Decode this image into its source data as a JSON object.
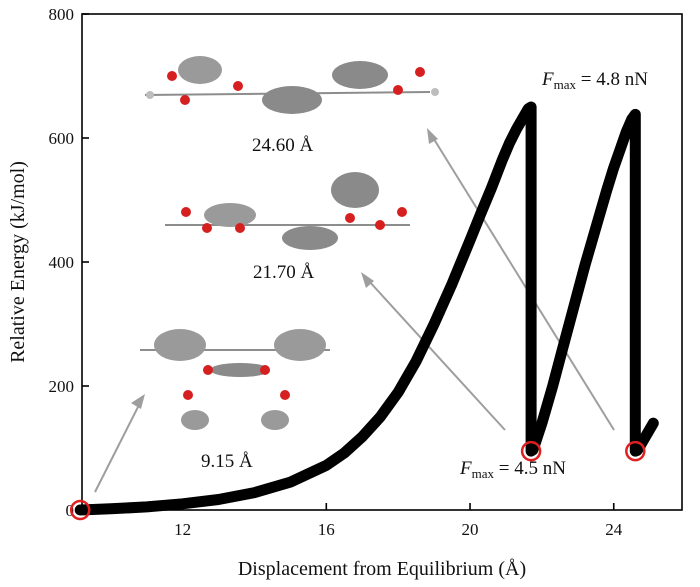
{
  "chart_data": {
    "type": "line",
    "xlabel": "Displacement from Equilibrium (Å)",
    "ylabel": "Relative Energy (kJ/mol)",
    "xlim": [
      9.2,
      25.9
    ],
    "ylim": [
      0,
      800
    ],
    "xticks": [
      12,
      16,
      20,
      24
    ],
    "yticks": [
      0,
      200,
      400,
      600,
      800
    ],
    "x_tick_labels": [
      "12",
      "16",
      "20",
      "24"
    ],
    "y_tick_labels": [
      "0",
      "200",
      "400",
      "600",
      "800"
    ],
    "series": [
      {
        "name": "Relative Energy",
        "color": "#000000",
        "x": [
          9.15,
          10.0,
          11.0,
          12.0,
          13.0,
          14.0,
          15.0,
          16.0,
          16.5,
          17.0,
          17.5,
          18.0,
          18.5,
          19.0,
          19.5,
          20.0,
          20.3,
          20.6,
          20.9,
          21.1,
          21.3,
          21.5,
          21.62,
          21.7,
          21.7,
          21.75,
          21.8,
          22.0,
          22.3,
          22.6,
          22.9,
          23.2,
          23.5,
          23.8,
          24.0,
          24.2,
          24.35,
          24.5,
          24.6,
          24.6,
          24.65,
          24.7,
          24.8,
          25.0,
          25.1
        ],
        "y": [
          0,
          2,
          5,
          10,
          17,
          28,
          45,
          72,
          92,
          118,
          150,
          190,
          240,
          300,
          365,
          435,
          478,
          520,
          565,
          592,
          615,
          635,
          647,
          650,
          95,
          97,
          105,
          140,
          200,
          265,
          330,
          395,
          455,
          515,
          552,
          585,
          610,
          630,
          638,
          95,
          96,
          100,
          110,
          130,
          140
        ]
      }
    ],
    "markers": [
      {
        "x": 9.15,
        "y": 0,
        "color": "#e02020"
      },
      {
        "x": 21.7,
        "y": 95,
        "color": "#e02020"
      },
      {
        "x": 24.6,
        "y": 95,
        "color": "#e02020"
      }
    ],
    "annotations": {
      "lengths": [
        "24.60 Å",
        "21.70 Å",
        "9.15 Å"
      ],
      "force_high": {
        "symbol": "F",
        "sub": "max",
        "value": " = 4.8 nN"
      },
      "force_low": {
        "symbol": "F",
        "sub": "max",
        "value": " = 4.5 nN"
      }
    }
  }
}
